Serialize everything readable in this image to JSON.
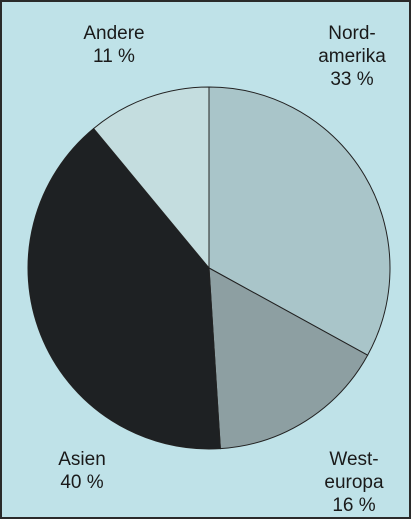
{
  "chart_data": {
    "type": "pie",
    "categories": [
      "Nord-\namerika",
      "West-\neuropa",
      "Asien",
      "Andere"
    ],
    "values": [
      33,
      16,
      40,
      11
    ],
    "value_labels": [
      "33 %",
      "16 %",
      "40 %",
      "11 %"
    ],
    "colors": [
      "#a9c5c9",
      "#8d9fa2",
      "#1e2123",
      "#c4dddf"
    ]
  }
}
